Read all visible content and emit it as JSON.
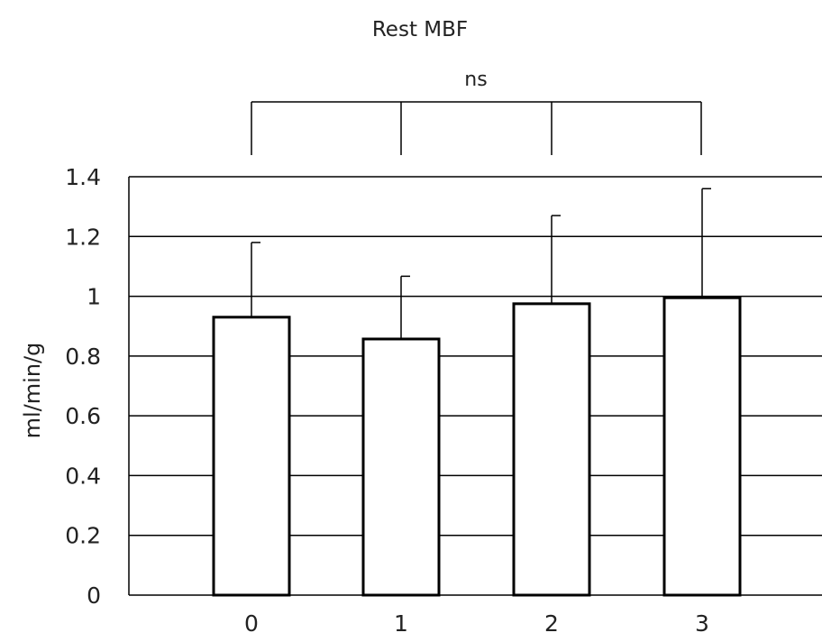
{
  "chart_data": {
    "type": "bar",
    "title": "Rest MBF",
    "ylabel": "ml/min/g",
    "xlabel": "",
    "categories": [
      "0",
      "1",
      "2",
      "3"
    ],
    "values": [
      0.93,
      0.857,
      0.975,
      0.995
    ],
    "error_upper": [
      0.25,
      0.21,
      0.295,
      0.365
    ],
    "ylim": [
      0,
      1.4
    ],
    "yticks": [
      "0",
      "0.2",
      "0.4",
      "0.6",
      "0.8",
      "1",
      "1.2",
      "1.4"
    ],
    "grid": true,
    "legend": "none",
    "significance": {
      "label": "ns",
      "groups": [
        "0",
        "1",
        "2",
        "3"
      ]
    },
    "colors": {
      "bar_fill": "#ffffff",
      "bar_stroke": "#000000",
      "grid": "#000000"
    }
  }
}
